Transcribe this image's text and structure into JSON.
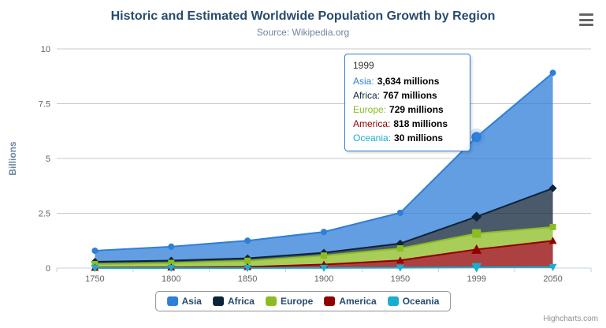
{
  "header": {
    "title": "Historic and Estimated Worldwide Population Growth by Region",
    "subtitle": "Source: Wikipedia.org"
  },
  "credits": "Highcharts.com",
  "tooltip": {
    "header": "1999",
    "border_color": "#2f7ed8",
    "rows": [
      {
        "label": "Asia:",
        "value": "3,634 millions",
        "color": "#2f7ed8"
      },
      {
        "label": "Africa:",
        "value": "767 millions",
        "color": "#0d233a"
      },
      {
        "label": "Europe:",
        "value": "729 millions",
        "color": "#8bbc21"
      },
      {
        "label": "America:",
        "value": "818 millions",
        "color": "#910000"
      },
      {
        "label": "Oceania:",
        "value": "30 millions",
        "color": "#1aadce"
      }
    ]
  },
  "legend": {
    "items": [
      {
        "label": "Asia",
        "color": "#2f7ed8"
      },
      {
        "label": "Africa",
        "color": "#0d233a"
      },
      {
        "label": "Europe",
        "color": "#8bbc21"
      },
      {
        "label": "America",
        "color": "#910000"
      },
      {
        "label": "Oceania",
        "color": "#1aadce"
      }
    ]
  },
  "chart_data": {
    "type": "area",
    "stacked": true,
    "title": "Historic and Estimated Worldwide Population Growth by Region",
    "subtitle": "Source: Wikipedia.org",
    "xlabel": "",
    "ylabel": "Billions",
    "unit": "millions",
    "categories": [
      "1750",
      "1800",
      "1850",
      "1900",
      "1950",
      "1999",
      "2050"
    ],
    "yticks": [
      0,
      2.5,
      5,
      7.5,
      10
    ],
    "ylim": [
      0,
      10
    ],
    "grid": true,
    "legend_position": "bottom",
    "hover_category": "1999",
    "series": [
      {
        "name": "Asia",
        "color": "#2f7ed8",
        "marker": "circle",
        "values": [
          502,
          635,
          809,
          947,
          1402,
          3634,
          5268
        ]
      },
      {
        "name": "Africa",
        "color": "#0d233a",
        "marker": "diamond",
        "values": [
          106,
          107,
          111,
          133,
          221,
          767,
          1766
        ]
      },
      {
        "name": "Europe",
        "color": "#8bbc21",
        "marker": "square",
        "values": [
          163,
          203,
          276,
          408,
          547,
          729,
          628
        ]
      },
      {
        "name": "America",
        "color": "#910000",
        "marker": "triangle",
        "values": [
          18,
          31,
          54,
          156,
          339,
          818,
          1201
        ]
      },
      {
        "name": "Oceania",
        "color": "#1aadce",
        "marker": "triangle-down",
        "values": [
          2,
          2,
          2,
          6,
          13,
          30,
          46
        ]
      }
    ]
  }
}
